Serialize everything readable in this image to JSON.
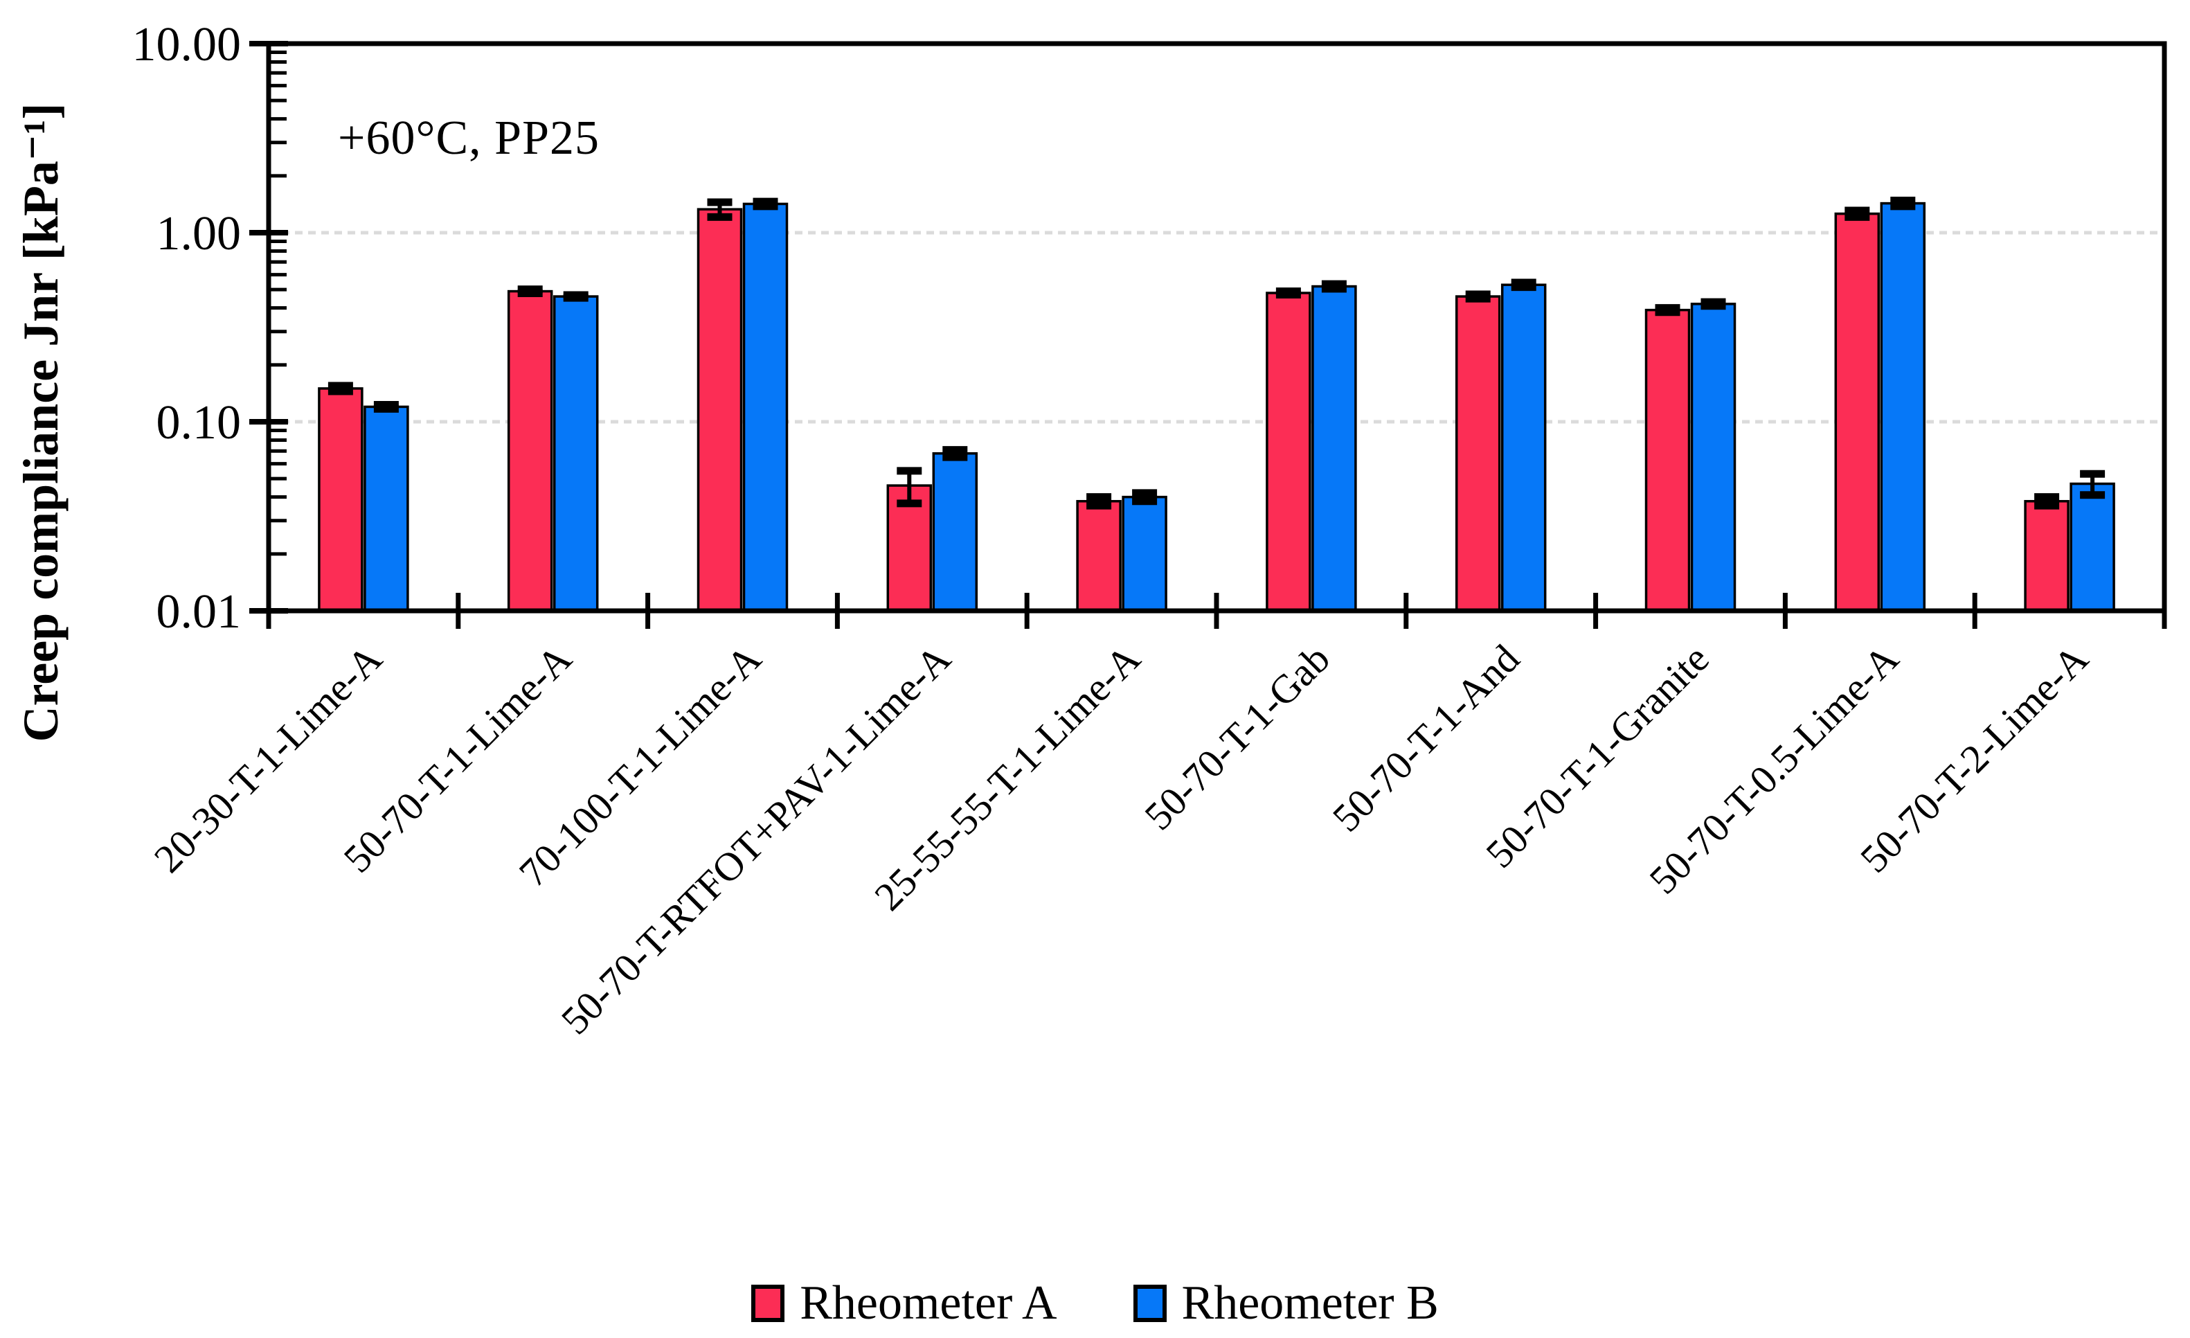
{
  "chart_data": {
    "type": "bar",
    "title_annotation": "+60°C, PP25",
    "ylabel": "Creep compliance Jnr [kPa⁻¹]",
    "y_scale": "log",
    "ylim": [
      0.01,
      10
    ],
    "y_ticks": [
      {
        "value": 10,
        "label": "10.00"
      },
      {
        "value": 1,
        "label": "1.00"
      },
      {
        "value": 0.1,
        "label": "0.10"
      },
      {
        "value": 0.01,
        "label": "0.01"
      }
    ],
    "gridline_values": [
      1.0,
      0.1
    ],
    "grid_color": "#DBDBDB",
    "axis_color": "#000000",
    "error_bar_color": "#000000",
    "categories": [
      "20-30-T-1-Lime-A",
      "50-70-T-1-Lime-A",
      "70-100-T-1-Lime-A",
      "50-70-T-RTFOT+PAV-1-Lime-A",
      "25-55-55-T-1-Lime-A",
      "50-70-T-1-Gab",
      "50-70-T-1-And",
      "50-70-T-1-Granite",
      "50-70-T-0.5-Lime-A",
      "50-70-T-2-Lime-A"
    ],
    "series": [
      {
        "name": "Rheometer A",
        "color": "#FC2D55",
        "values": [
          0.15,
          0.49,
          1.33,
          0.046,
          0.038,
          0.48,
          0.46,
          0.39,
          1.26,
          0.038
        ],
        "errors": [
          0.005,
          0.012,
          0.12,
          0.009,
          0.002,
          0.01,
          0.012,
          0.01,
          0.05,
          0.002
        ]
      },
      {
        "name": "Rheometer B",
        "color": "#0678F8",
        "values": [
          0.12,
          0.46,
          1.42,
          0.068,
          0.04,
          0.52,
          0.53,
          0.42,
          1.43,
          0.047
        ],
        "errors": [
          0.003,
          0.008,
          0.04,
          0.003,
          0.002,
          0.015,
          0.015,
          0.01,
          0.05,
          0.006
        ]
      }
    ],
    "legend_position": "bottom",
    "grid": true
  }
}
